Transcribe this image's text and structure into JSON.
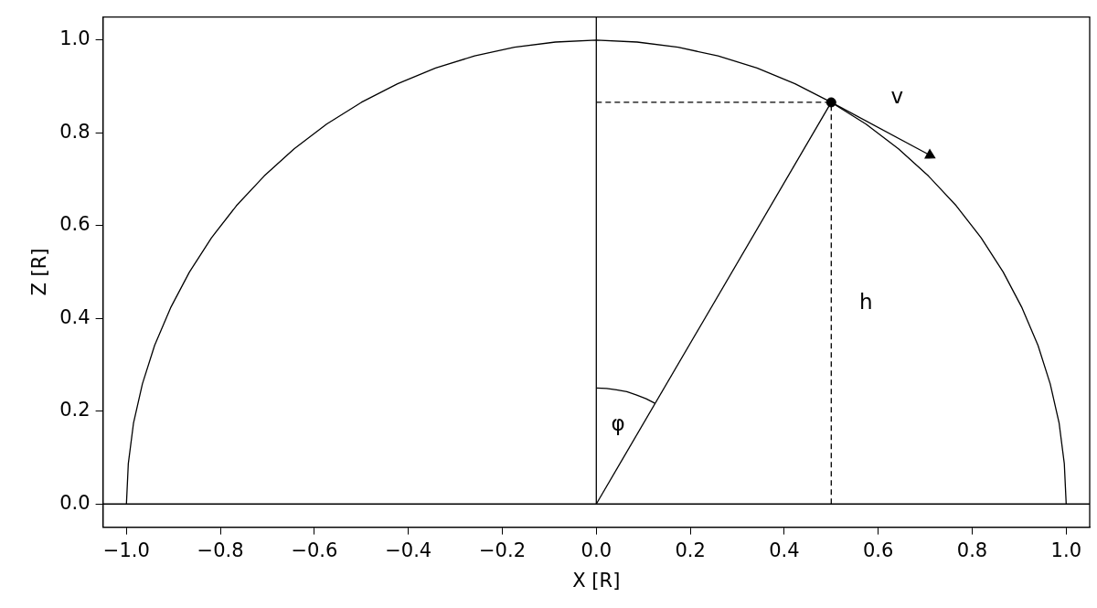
{
  "chart_data": {
    "type": "line",
    "xlabel": "X [R]",
    "ylabel": "Z [R]",
    "xlim": [
      -1.05,
      1.05
    ],
    "ylim": [
      -0.05,
      1.05
    ],
    "xticks": [
      {
        "value": -1,
        "label": "−1.0"
      },
      {
        "value": -0.8,
        "label": "−0.8"
      },
      {
        "value": -0.6,
        "label": "−0.6"
      },
      {
        "value": -0.4,
        "label": "−0.4"
      },
      {
        "value": -0.2,
        "label": "−0.2"
      },
      {
        "value": 0,
        "label": "0.0"
      },
      {
        "value": 0.2,
        "label": "0.2"
      },
      {
        "value": 0.4,
        "label": "0.4"
      },
      {
        "value": 0.6,
        "label": "0.6"
      },
      {
        "value": 0.8,
        "label": "0.8"
      },
      {
        "value": 1,
        "label": "1.0"
      }
    ],
    "yticks": [
      {
        "value": 0,
        "label": "0.0"
      },
      {
        "value": 0.2,
        "label": "0.2"
      },
      {
        "value": 0.4,
        "label": "0.4"
      },
      {
        "value": 0.6,
        "label": "0.6"
      },
      {
        "value": 0.8,
        "label": "0.8"
      },
      {
        "value": 1,
        "label": "1.0"
      }
    ],
    "series": [
      {
        "color": "#000000",
        "line_style": "solid",
        "x": [
          -1,
          -0.996,
          -0.985,
          -0.966,
          -0.94,
          -0.906,
          -0.866,
          -0.819,
          -0.766,
          -0.707,
          -0.643,
          -0.574,
          -0.5,
          -0.423,
          -0.342,
          -0.259,
          -0.174,
          -0.087,
          0,
          0.087,
          0.174,
          0.259,
          0.342,
          0.423,
          0.5,
          0.574,
          0.643,
          0.707,
          0.766,
          0.819,
          0.866,
          0.906,
          0.94,
          0.966,
          0.985,
          0.996,
          1
        ],
        "values": [
          0,
          0.087,
          0.174,
          0.259,
          0.342,
          0.423,
          0.5,
          0.574,
          0.643,
          0.707,
          0.766,
          0.819,
          0.866,
          0.906,
          0.94,
          0.966,
          0.985,
          0.996,
          1,
          0.996,
          0.985,
          0.966,
          0.94,
          0.906,
          0.866,
          0.819,
          0.766,
          0.707,
          0.643,
          0.574,
          0.5,
          0.423,
          0.342,
          0.259,
          0.174,
          0.087,
          0
        ]
      },
      {
        "color": "#000000",
        "line_style": "solid",
        "x": [
          0,
          0
        ],
        "values": [
          0,
          1.05
        ]
      },
      {
        "color": "#000000",
        "line_style": "solid",
        "x": [
          0,
          0.5
        ],
        "values": [
          0,
          0.866
        ]
      },
      {
        "color": "#000000",
        "line_style": "dashed",
        "x": [
          0,
          0.5
        ],
        "values": [
          0.866,
          0.866
        ]
      },
      {
        "name": "h",
        "color": "#000000",
        "line_style": "dashed",
        "x": [
          0.5,
          0.5
        ],
        "values": [
          0,
          0.866
        ]
      },
      {
        "name": "φ",
        "color": "#000000",
        "line_style": "solid",
        "x": [
          0,
          0.022,
          0.043,
          0.065,
          0.086,
          0.106,
          0.125
        ],
        "values": [
          0.25,
          0.249,
          0.246,
          0.242,
          0.235,
          0.227,
          0.217
        ]
      },
      {
        "name": "v",
        "color": "#000000",
        "line_style": "solid",
        "marker": "triangle",
        "x": [
          0.5,
          0.71
        ],
        "values": [
          0.866,
          0.752
        ]
      },
      {
        "type": "scatter",
        "color": "#000000",
        "marker": "circle",
        "x": [
          0.5
        ],
        "values": [
          0.866
        ]
      }
    ],
    "ref_lines": [
      {
        "axis": "y",
        "value": 0,
        "color": "#000000",
        "line_style": "solid"
      }
    ]
  }
}
